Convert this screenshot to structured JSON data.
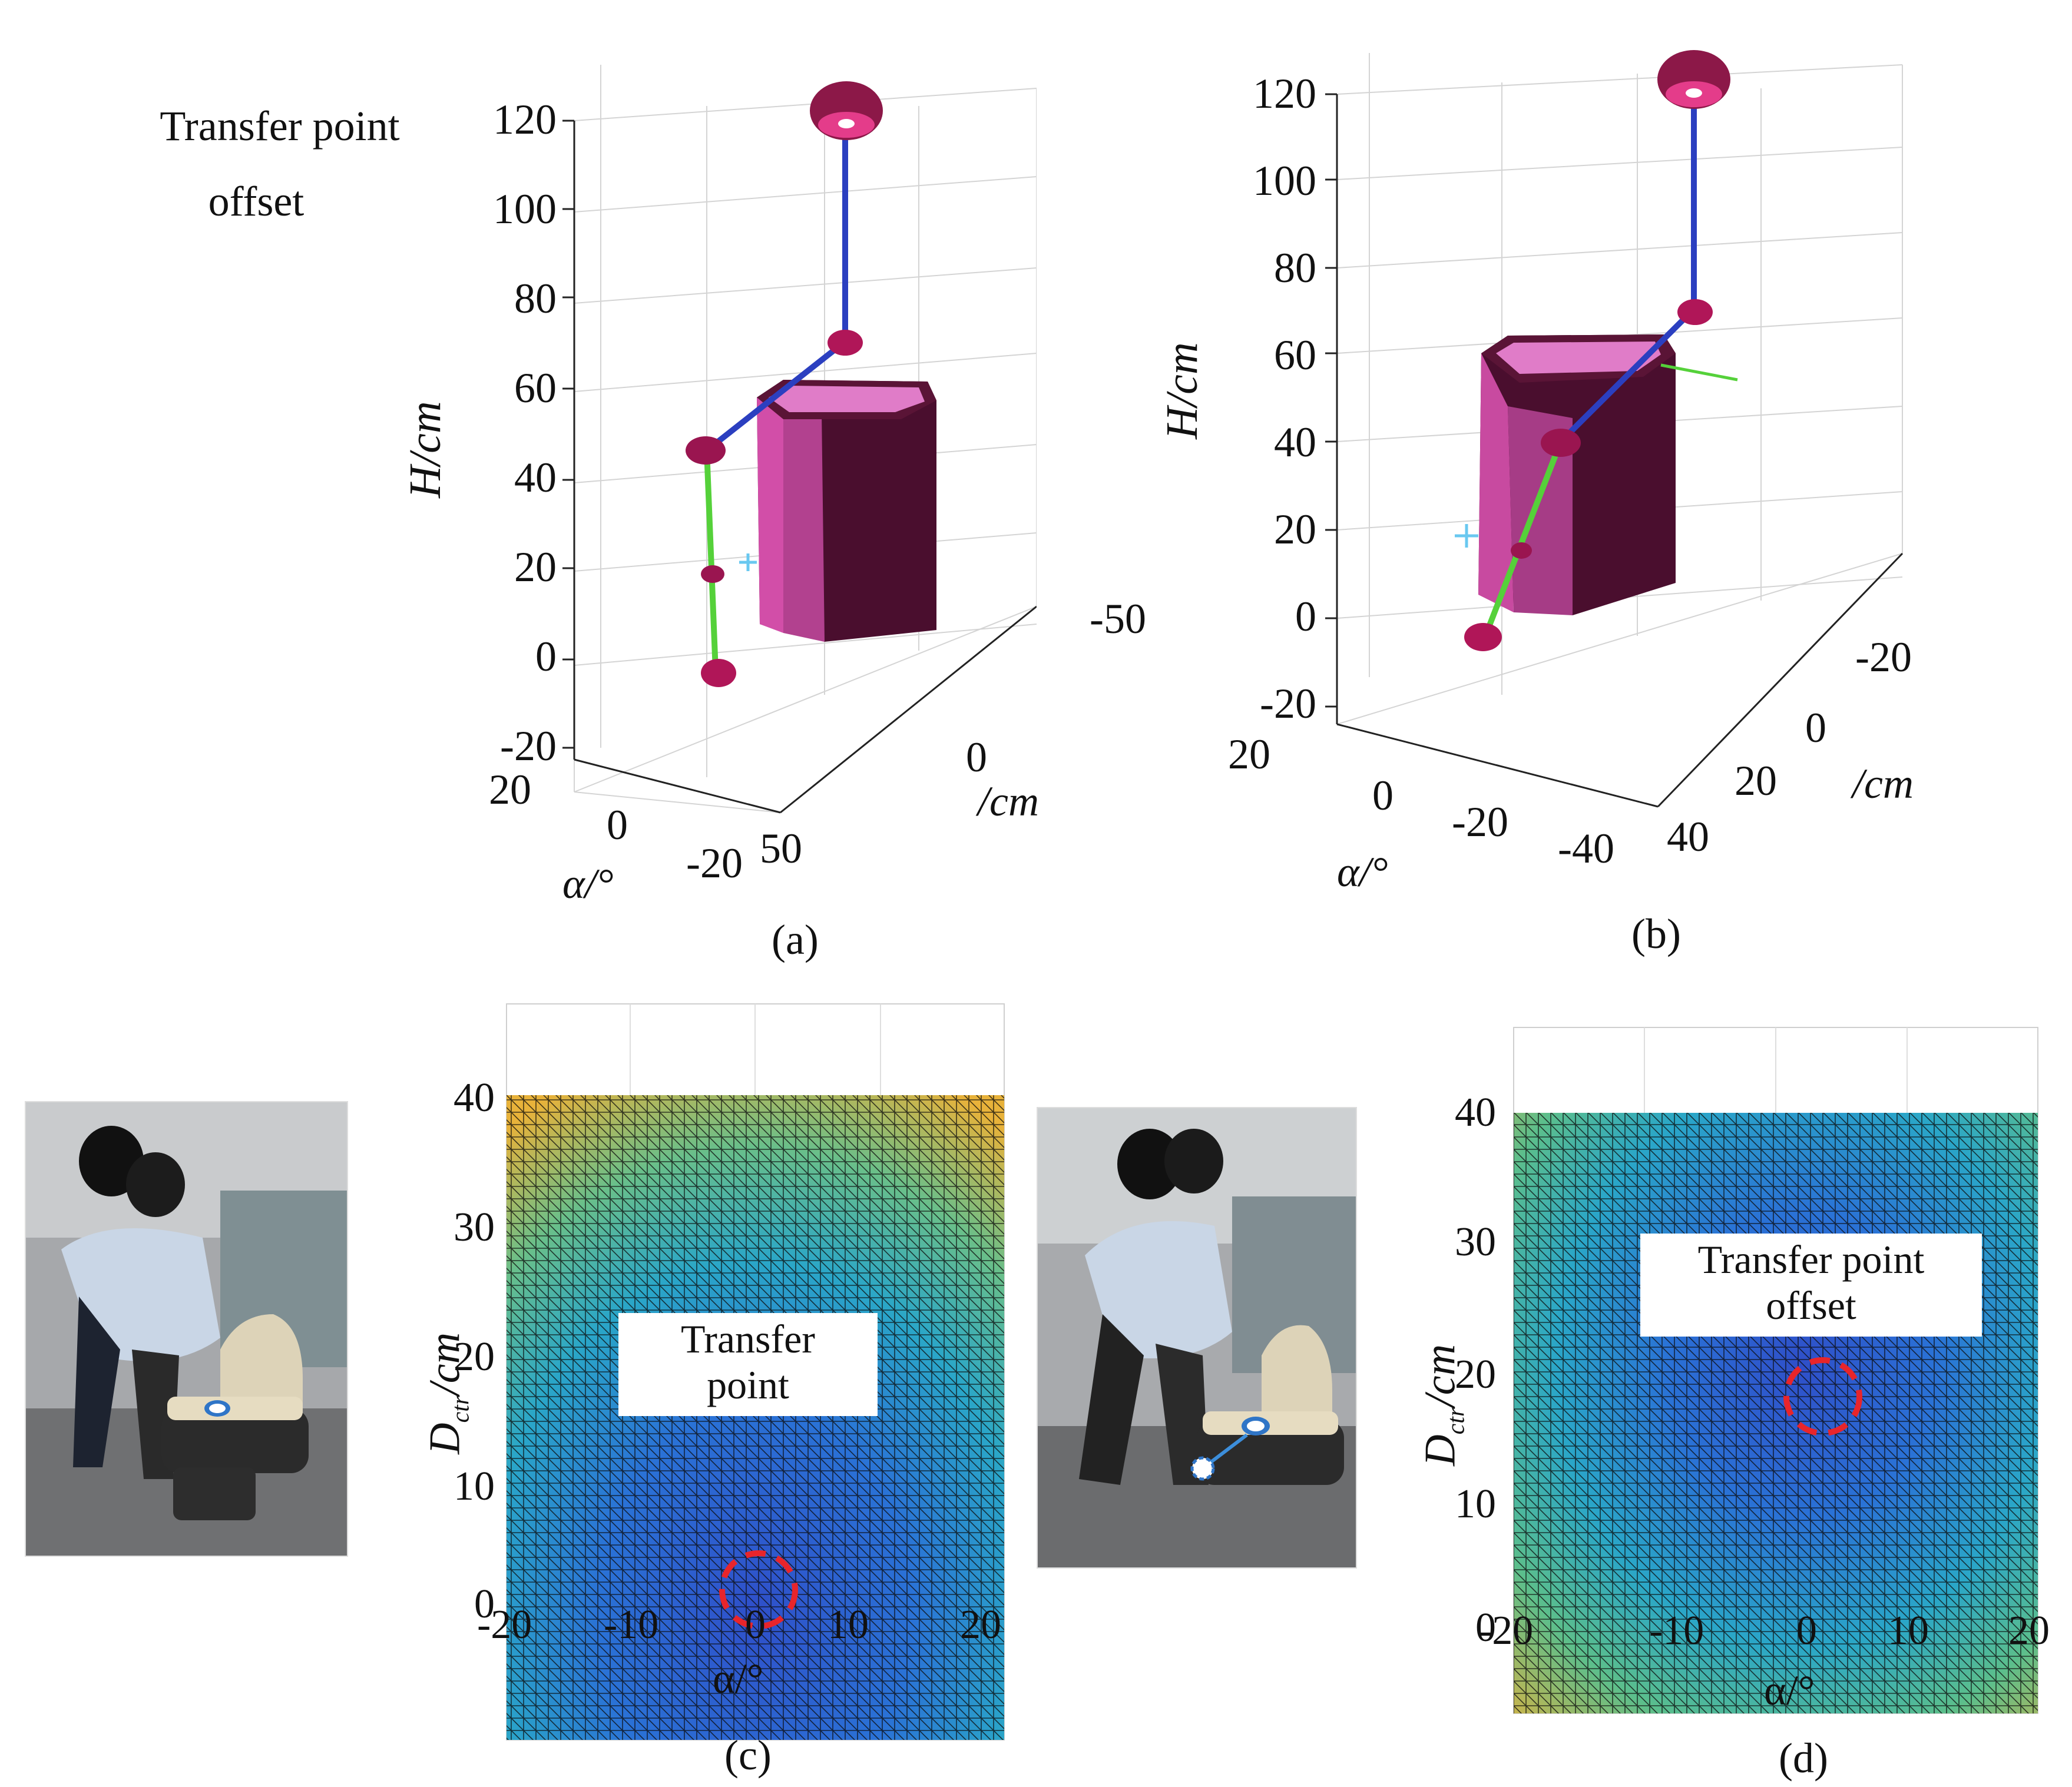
{
  "panels": {
    "a": {
      "label": "(a)",
      "title_line1": "Transfer point",
      "title_line2": "offset",
      "z_axis_label": "H/cm",
      "y_axis_label": "/cm",
      "x_axis_label": "α/°",
      "z_ticks": [
        "120",
        "100",
        "80",
        "60",
        "40",
        "20",
        "0",
        "-20"
      ],
      "y_ticks": [
        "-50",
        "0",
        "50"
      ],
      "x_ticks": [
        "20",
        "0",
        "-20"
      ]
    },
    "b": {
      "label": "(b)",
      "z_axis_label": "H/cm",
      "y_axis_label": "/cm",
      "x_axis_label": "α/°",
      "z_ticks": [
        "120",
        "100",
        "80",
        "60",
        "40",
        "20",
        "0",
        "-20"
      ],
      "y_ticks": [
        "-20",
        "0",
        "20",
        "40"
      ],
      "x_ticks": [
        "20",
        "0",
        "-20",
        "-40"
      ]
    },
    "c": {
      "label": "(c)",
      "annotation_line1": "Transfer",
      "annotation_line2": "point",
      "x_axis_label": "α/°",
      "y_axis_label_main": "D",
      "y_axis_label_sub": "ctr",
      "y_axis_label_unit": "/cm",
      "x_ticks": [
        "-20",
        "-10",
        "0",
        "10",
        "20"
      ],
      "y_ticks": [
        "40",
        "30",
        "20",
        "10",
        "0"
      ]
    },
    "d": {
      "label": "(d)",
      "annotation_line1": "Transfer point",
      "annotation_line2": "offset",
      "x_axis_label": "α/°",
      "y_axis_label_main": "D",
      "y_axis_label_sub": "ctr",
      "y_axis_label_unit": "/cm",
      "x_ticks": [
        "-20",
        "-10",
        "0",
        "10",
        "20"
      ],
      "y_ticks": [
        "40",
        "30",
        "20",
        "10",
        "0"
      ]
    }
  },
  "colors": {
    "column": "#4a0e2e",
    "column_face": "#c84aa0",
    "joint": "#c21e6b",
    "upper_link": "#2b3fc0",
    "lower_link": "#55d13a",
    "heatmap_low": "#2f4fc9",
    "heatmap_mid": "#2aa6c8",
    "heatmap_high": "#e8b23a",
    "marker": "#e8252b"
  }
}
